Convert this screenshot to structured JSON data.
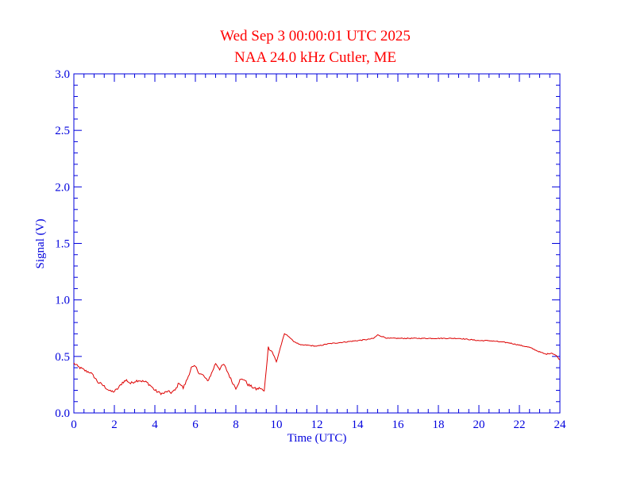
{
  "chart_data": {
    "type": "line",
    "title": "Wed Sep 3 00:00:01 UTC 2025",
    "subtitle": "NAA 24.0 kHz Cutler, ME",
    "xlabel": "Time (UTC)",
    "ylabel": "Signal (V)",
    "xlim": [
      0,
      24
    ],
    "ylim": [
      0,
      3.0
    ],
    "x_ticks": [
      0,
      2,
      4,
      6,
      8,
      10,
      12,
      14,
      16,
      18,
      20,
      22,
      24
    ],
    "x_tick_labels": [
      "0",
      "2",
      "4",
      "6",
      "8",
      "10",
      "12",
      "14",
      "16",
      "18",
      "20",
      "22",
      "24"
    ],
    "y_ticks": [
      0,
      0.5,
      1.0,
      1.5,
      2.0,
      2.5,
      3.0
    ],
    "y_tick_labels": [
      "0.0",
      "0.5",
      "1.0",
      "1.5",
      "2.0",
      "2.5",
      "3.0"
    ],
    "grid": false,
    "colors": {
      "axes": "#0000dd",
      "title": "#ff0000",
      "series": "#dd0000"
    },
    "series": [
      {
        "x": [
          0,
          0.2,
          0.4,
          0.6,
          0.8,
          1.0,
          1.2,
          1.4,
          1.6,
          1.8,
          2.0,
          2.2,
          2.4,
          2.6,
          2.8,
          3.0,
          3.2,
          3.4,
          3.6,
          3.8,
          4.0,
          4.2,
          4.4,
          4.6,
          4.8,
          5.0,
          5.2,
          5.4,
          5.6,
          5.8,
          6.0,
          6.2,
          6.4,
          6.6,
          6.8,
          7.0,
          7.2,
          7.4,
          7.6,
          7.8,
          8.0,
          8.2,
          8.4,
          8.6,
          8.8,
          9.0,
          9.2,
          9.4,
          9.6,
          9.8,
          10.0,
          10.2,
          10.4,
          10.6,
          10.8,
          11.0,
          11.2,
          11.5,
          12.0,
          12.5,
          13.0,
          13.5,
          14.0,
          14.5,
          14.8,
          15.0,
          15.5,
          16.0,
          17.0,
          18.0,
          19.0,
          20.0,
          20.5,
          21.0,
          21.5,
          22.0,
          22.5,
          23.0,
          23.3,
          23.6,
          23.8,
          24.0
        ],
        "y": [
          0.44,
          0.41,
          0.39,
          0.37,
          0.36,
          0.32,
          0.27,
          0.25,
          0.22,
          0.19,
          0.19,
          0.22,
          0.27,
          0.29,
          0.26,
          0.28,
          0.29,
          0.28,
          0.27,
          0.24,
          0.2,
          0.18,
          0.17,
          0.19,
          0.18,
          0.2,
          0.27,
          0.22,
          0.3,
          0.4,
          0.41,
          0.35,
          0.33,
          0.28,
          0.35,
          0.44,
          0.39,
          0.43,
          0.36,
          0.28,
          0.22,
          0.29,
          0.3,
          0.25,
          0.23,
          0.21,
          0.22,
          0.19,
          0.58,
          0.54,
          0.45,
          0.58,
          0.7,
          0.68,
          0.64,
          0.62,
          0.6,
          0.6,
          0.59,
          0.61,
          0.62,
          0.63,
          0.64,
          0.65,
          0.66,
          0.69,
          0.66,
          0.66,
          0.66,
          0.66,
          0.66,
          0.64,
          0.64,
          0.63,
          0.62,
          0.6,
          0.58,
          0.54,
          0.52,
          0.53,
          0.51,
          0.47
        ]
      }
    ]
  }
}
